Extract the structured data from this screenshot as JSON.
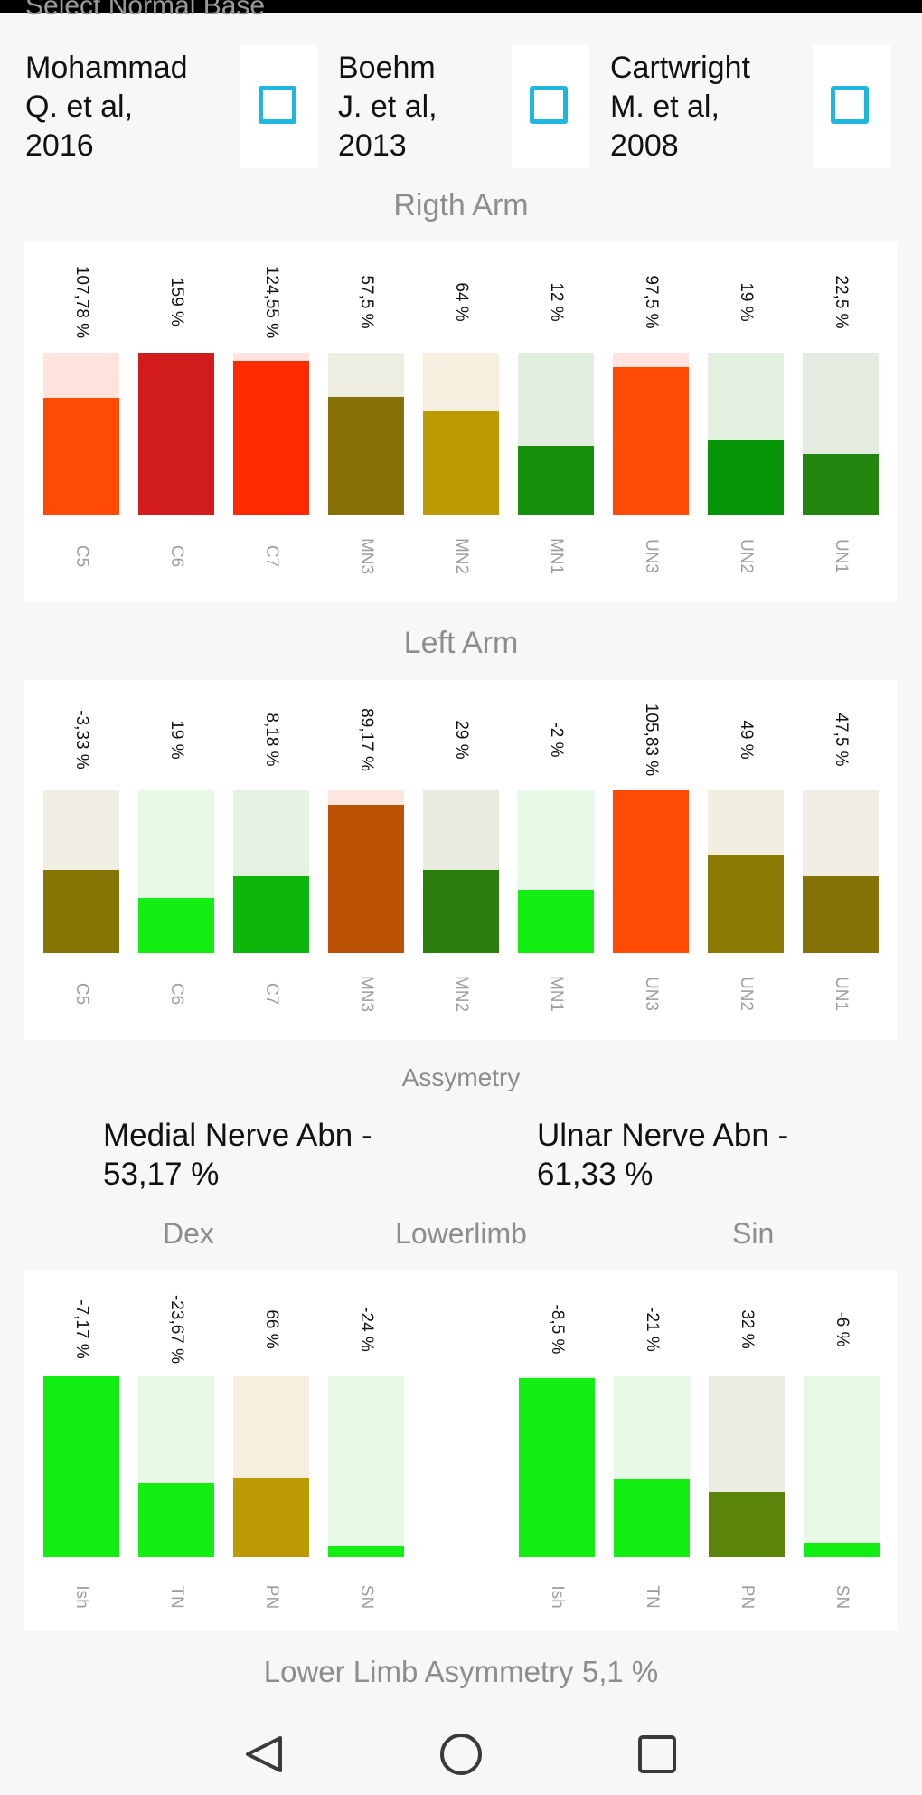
{
  "header": {
    "cut_title": "Select Normal Base",
    "references": [
      {
        "label": "Mohammad\nQ. et al,\n2016",
        "checked": false
      },
      {
        "label": "Boehm\nJ. et al,\n2013",
        "checked": false
      },
      {
        "label": "Cartwright\nM. et al,\n2008",
        "checked": false
      }
    ]
  },
  "right_arm": {
    "title": "Rigth Arm",
    "chart_data": {
      "type": "bar",
      "categories": [
        "C5",
        "C6",
        "C7",
        "MN3",
        "MN2",
        "MN1",
        "UN3",
        "UN2",
        "UN1"
      ],
      "values": [
        107.78,
        159,
        124.55,
        57.5,
        64,
        12,
        97.5,
        19,
        22.5
      ],
      "value_labels": [
        "107,78 %",
        "159 %",
        "124,55 %",
        "57,5 %",
        "64 %",
        "12 %",
        "97,5 %",
        "19 %",
        "22,5 %"
      ],
      "fill_fraction": [
        0.72,
        1.0,
        0.95,
        0.73,
        0.64,
        0.43,
        0.91,
        0.46,
        0.38
      ],
      "fill_colors": [
        "#ff4a04",
        "#d21c1c",
        "#ff2a00",
        "#857104",
        "#bc9a02",
        "#158f0c",
        "#ff4a04",
        "#069506",
        "#22850e"
      ],
      "track_colors": [
        "#ffe3dc",
        "#ffe3dc",
        "#ffe3dc",
        "#efeee3",
        "#f6efe0",
        "#e1efe1",
        "#ffe3dc",
        "#e1f0df",
        "#e4ebe0"
      ]
    }
  },
  "left_arm": {
    "title": "Left Arm",
    "chart_data": {
      "type": "bar",
      "categories": [
        "C5",
        "C6",
        "C7",
        "MN3",
        "MN2",
        "MN1",
        "UN3",
        "UN2",
        "UN1"
      ],
      "values": [
        -3.33,
        19,
        8.18,
        89.17,
        29,
        -2,
        105.83,
        49,
        47.5
      ],
      "value_labels": [
        "-3,33 %",
        "19 %",
        "8,18 %",
        "89,17 %",
        "29 %",
        "-2 %",
        "105,83 %",
        "49 %",
        "47,5 %"
      ],
      "fill_fraction": [
        0.51,
        0.34,
        0.47,
        0.91,
        0.51,
        0.39,
        1.0,
        0.6,
        0.47
      ],
      "fill_colors": [
        "#857505",
        "#12ee12",
        "#0eb50a",
        "#bb5102",
        "#2a7f0c",
        "#12ee12",
        "#ff4a04",
        "#8b7a04",
        "#847207"
      ],
      "track_colors": [
        "#f0ede2",
        "#e5f9e5",
        "#e5f3e3",
        "#fde6dd",
        "#e8ebe0",
        "#e5f9e5",
        "#ffe3dc",
        "#f2eee0",
        "#f0ede2"
      ]
    }
  },
  "asymmetry": {
    "title": "Assymetry",
    "medial": "Medial Nerve Abn -\n53,17 %",
    "ulnar": "Ulnar Nerve Abn -\n61,33 %"
  },
  "lower_limb": {
    "title": "Lowerlimb",
    "dex_label": "Dex",
    "sin_label": "Sin",
    "chart_data": [
      {
        "type": "bar",
        "side": "Dex",
        "categories": [
          "Ish",
          "TN",
          "PN",
          "SN"
        ],
        "values": [
          -7.17,
          -23.67,
          66,
          -24
        ],
        "value_labels": [
          "-7,17 %",
          "-23,67 %",
          "66 %",
          "-24 %"
        ],
        "fill_fraction": [
          1.0,
          0.41,
          0.44,
          0.06
        ],
        "fill_colors": [
          "#12ee12",
          "#12ee12",
          "#bd9904",
          "#12ee12"
        ],
        "track_colors": [
          "#e5f9e5",
          "#e5f9e5",
          "#f5efe0",
          "#e5f9e5"
        ]
      },
      {
        "type": "bar",
        "side": "Sin",
        "categories": [
          "Ish",
          "TN",
          "PN",
          "SN"
        ],
        "values": [
          -8.5,
          -21,
          32,
          -6
        ],
        "value_labels": [
          "-8,5 %",
          "-21 %",
          "32 %",
          "-6 %"
        ],
        "fill_fraction": [
          0.99,
          0.43,
          0.36,
          0.08
        ],
        "fill_colors": [
          "#12ee12",
          "#12ee12",
          "#5b840a",
          "#12ee12"
        ],
        "track_colors": [
          "#e5f9e5",
          "#e5f9e5",
          "#ecede2",
          "#e5f9e5"
        ]
      }
    ],
    "asymmetry_text": "Lower Limb Asymmetry 5,1 %"
  },
  "navbar": {
    "back_icon": "triangle-back-icon",
    "home_icon": "circle-home-icon",
    "recents_icon": "square-recents-icon",
    "icon_color": "#3a3a3a"
  }
}
